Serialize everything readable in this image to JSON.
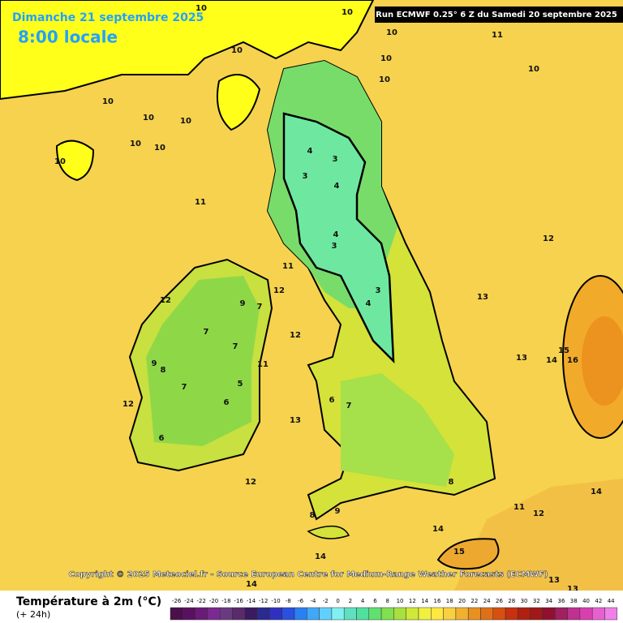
{
  "header": {
    "date": "Dimanche 21 septembre 2025",
    "time": "8:00 locale",
    "run": "Run ECMWF 0.25° 6 Z du Samedi 20 septembre 2025"
  },
  "copyright": "Copyright © 2025 Meteociel.fr - Source European Centre for Medium-Range Weather Forecasts (ECMWF)",
  "legend": {
    "title": "Température à 2m (°C)",
    "subtitle": "(+ 24h)",
    "values": [
      -26,
      -24,
      -22,
      -20,
      -18,
      -16,
      -14,
      -12,
      -10,
      -8,
      -6,
      -4,
      -2,
      0,
      2,
      4,
      6,
      8,
      10,
      12,
      14,
      16,
      18,
      20,
      22,
      24,
      26,
      28,
      30,
      32,
      34,
      36,
      38,
      40,
      42,
      44
    ],
    "colors": [
      "#4b0f4b",
      "#5a1060",
      "#6a1a78",
      "#7a2a90",
      "#6a3a80",
      "#5a2a6a",
      "#3a1a60",
      "#2a2a90",
      "#3030c0",
      "#2a50e0",
      "#2a80f0",
      "#40a8f8",
      "#60d0ff",
      "#80f0f0",
      "#60e0c0",
      "#50e0a0",
      "#60e070",
      "#80e050",
      "#a8e040",
      "#d0e838",
      "#f0f040",
      "#ffe840",
      "#f8d040",
      "#f0b030",
      "#e89020",
      "#e07018",
      "#d85010",
      "#c83010",
      "#b02010",
      "#a01818",
      "#901030",
      "#a02060",
      "#c03090",
      "#d840b0",
      "#e860d0",
      "#f080e8"
    ]
  },
  "contour_labels": [
    10,
    10,
    10,
    10,
    10,
    10,
    10,
    10,
    10,
    10,
    10,
    10,
    10,
    11,
    11,
    11,
    11,
    11,
    12,
    12,
    12,
    12,
    12,
    12,
    12,
    13,
    13,
    13,
    13,
    13,
    14,
    14,
    14,
    14,
    14,
    15,
    15,
    16,
    3,
    3,
    3,
    3,
    4,
    4,
    4,
    4,
    6,
    6,
    7,
    7,
    7,
    7,
    7,
    8,
    8,
    8,
    9,
    9,
    9,
    5,
    6
  ]
}
